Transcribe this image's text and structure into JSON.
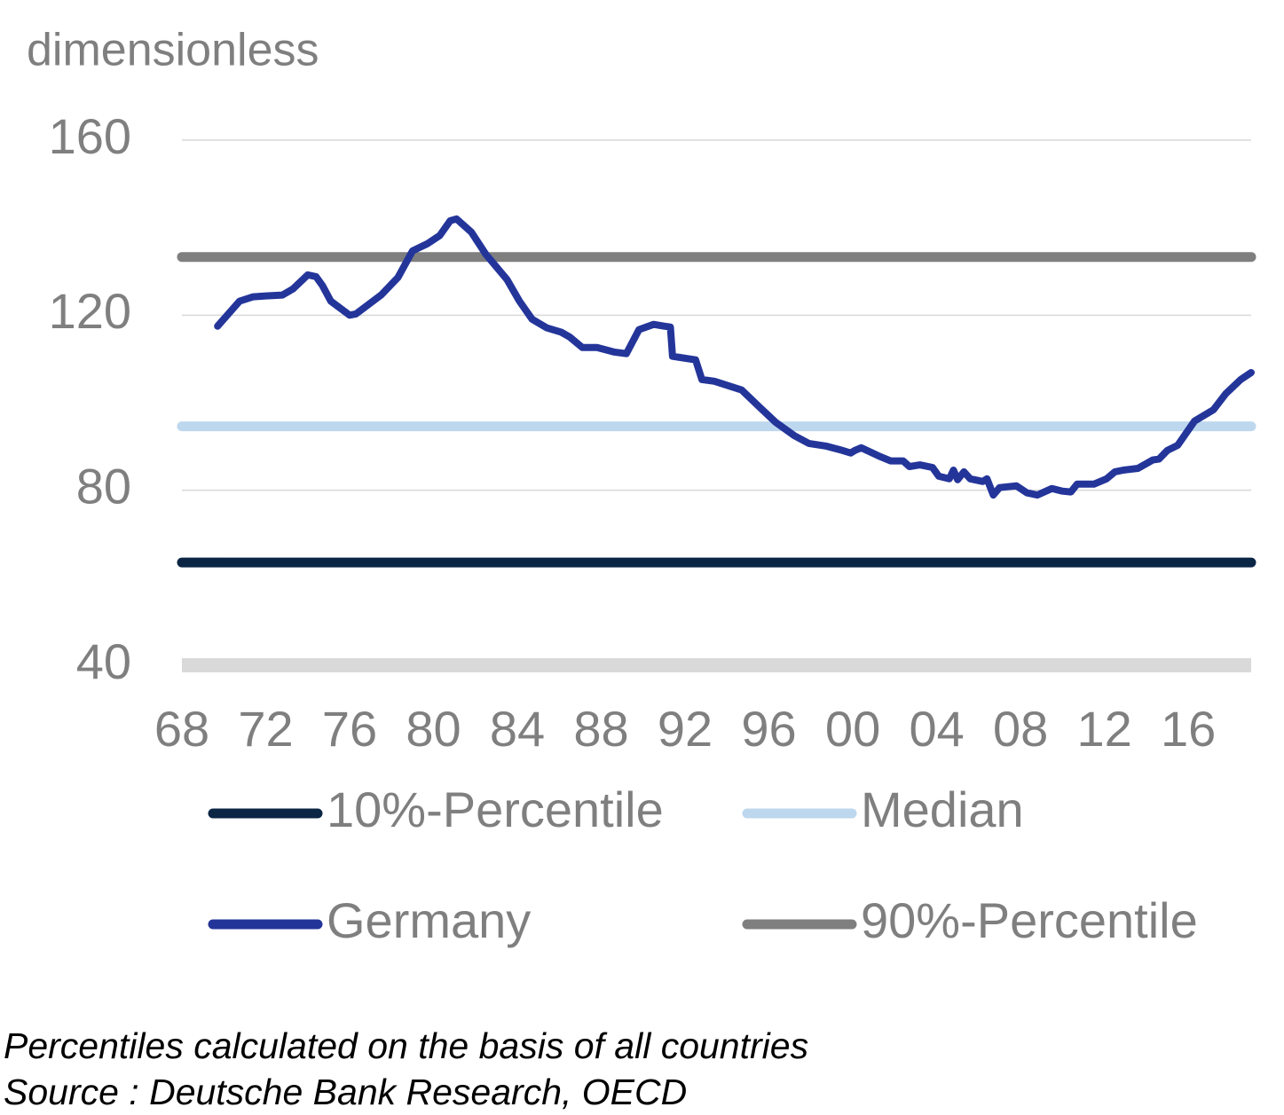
{
  "chart_data": {
    "type": "line",
    "y_label": "dimensionless",
    "xlim": [
      1968,
      2019
    ],
    "xticks": [
      {
        "value": 1968,
        "label": "68"
      },
      {
        "value": 1972,
        "label": "72"
      },
      {
        "value": 1976,
        "label": "76"
      },
      {
        "value": 1980,
        "label": "80"
      },
      {
        "value": 1984,
        "label": "84"
      },
      {
        "value": 1988,
        "label": "88"
      },
      {
        "value": 1992,
        "label": "92"
      },
      {
        "value": 1996,
        "label": "96"
      },
      {
        "value": 2000,
        "label": "00"
      },
      {
        "value": 2004,
        "label": "04"
      },
      {
        "value": 2008,
        "label": "08"
      },
      {
        "value": 2012,
        "label": "12"
      },
      {
        "value": 2016,
        "label": "16"
      }
    ],
    "ylim": [
      40,
      160
    ],
    "yticks": [
      40,
      80,
      120,
      160
    ],
    "grid": true,
    "series": [
      {
        "name": "10%-Percentile",
        "color": "#0b2545",
        "x": [
          1968,
          2019
        ],
        "values": [
          63.5,
          63.5
        ]
      },
      {
        "name": "Median",
        "color": "#bdd7ee",
        "x": [
          1968,
          2019
        ],
        "values": [
          94.6,
          94.6
        ]
      },
      {
        "name": "Germany",
        "color": "#24359a",
        "x": [
          1969.7,
          1970.75,
          1971.4,
          1972.0,
          1972.8,
          1973.3,
          1974.0,
          1974.4,
          1974.7,
          1975.1,
          1976.0,
          1976.3,
          1977.5,
          1978.3,
          1979.0,
          1979.7,
          1980.3,
          1980.8,
          1981.1,
          1981.8,
          1982.5,
          1983.5,
          1984.1,
          1984.7,
          1985.4,
          1986.1,
          1986.5,
          1987.1,
          1987.8,
          1988.6,
          1989.2,
          1989.8,
          1990.5,
          1991.0,
          1991.3,
          1991.4,
          1992.5,
          1992.8,
          1993.4,
          1994.7,
          1995.5,
          1996.3,
          1997.2,
          1997.9,
          1998.7,
          1999.5,
          1999.9,
          2000.1,
          2000.4,
          2001.3,
          2001.8,
          2002.4,
          2002.7,
          2003.2,
          2003.8,
          2004.1,
          2004.6,
          2004.8,
          2005.0,
          2005.3,
          2005.6,
          2006.2,
          2006.4,
          2006.7,
          2007.0,
          2007.8,
          2008.3,
          2008.8,
          2009.5,
          2010.0,
          2010.4,
          2010.7,
          2011.5,
          2012.1,
          2012.5,
          2012.9,
          2013.6,
          2014.3,
          2014.6,
          2015.0,
          2015.5,
          2016.3,
          2017.2,
          2017.8,
          2018.5,
          2019.0
        ],
        "values": [
          117.5,
          123.2,
          124.2,
          124.4,
          124.6,
          126,
          129.2,
          128.8,
          126.8,
          123.2,
          120,
          120.3,
          124.6,
          128.6,
          134.7,
          136.3,
          138.2,
          141.6,
          142,
          139,
          133.9,
          128.2,
          123.2,
          119.1,
          117.1,
          116.1,
          115,
          112.6,
          112.6,
          111.6,
          111.2,
          116.7,
          117.9,
          117.5,
          117.3,
          110.6,
          109.8,
          105.3,
          104.9,
          102.9,
          99.2,
          95.6,
          92.5,
          90.7,
          90.1,
          89.1,
          88.5,
          89.1,
          89.7,
          87.7,
          86.7,
          86.7,
          85.4,
          85.8,
          85.2,
          83.2,
          82.6,
          84.6,
          82.4,
          84.2,
          82.6,
          82,
          82.6,
          78.9,
          80.6,
          81,
          79.4,
          78.9,
          80.4,
          79.8,
          79.6,
          81.4,
          81.4,
          82.6,
          84.2,
          84.6,
          85,
          86.9,
          87.1,
          89.1,
          90.3,
          95.8,
          98.4,
          102.1,
          105.3,
          106.9
        ]
      },
      {
        "name": "90%-Percentile",
        "color": "#7f7f7f",
        "x": [
          1968,
          2019
        ],
        "values": [
          133.3,
          133.3
        ]
      }
    ],
    "notes": [
      "Percentiles calculated on the basis of all countries",
      "Source : Deutsche Bank Research, OECD"
    ]
  }
}
